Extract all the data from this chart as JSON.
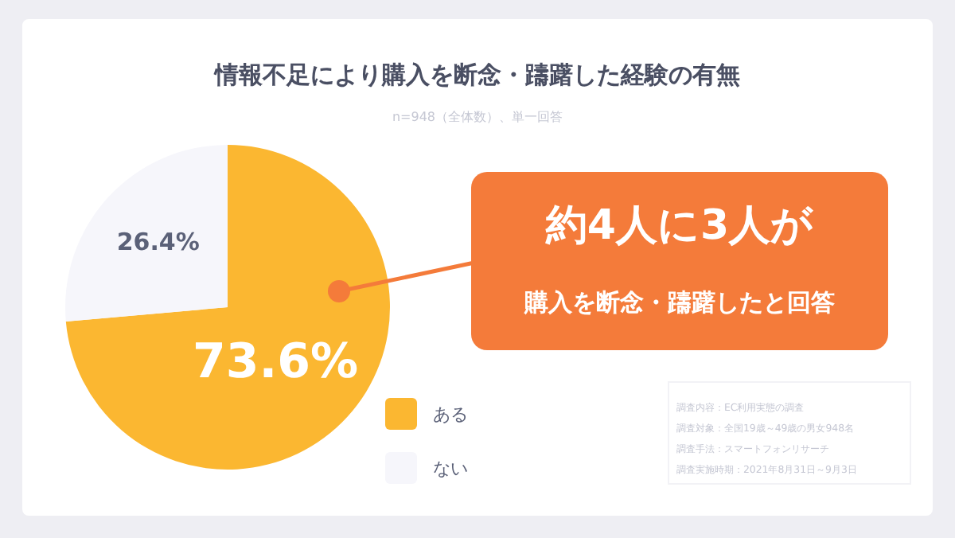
{
  "chart_data": {
    "type": "pie",
    "title": "情報不足により購入を断念・躊躇した経験の有無",
    "subtitle": "n=948（全体数）、単一回答",
    "categories": [
      "ある",
      "ない"
    ],
    "values": [
      73.6,
      26.4
    ],
    "colors": [
      "#fbb731",
      "#f6f6fb"
    ],
    "value_labels": [
      "73.6%",
      "26.4%"
    ],
    "legend": "right",
    "annotations": [
      "約4人に3人が",
      "購入を断念・躊躇したと回答",
      "調査内容：EC利用実態の調査",
      "調査対象：全国19歳～49歳の男女948名",
      "調査手法：スマートフォンリサーチ",
      "調査実施時期：2021年8月31日～9月3日"
    ]
  }
}
